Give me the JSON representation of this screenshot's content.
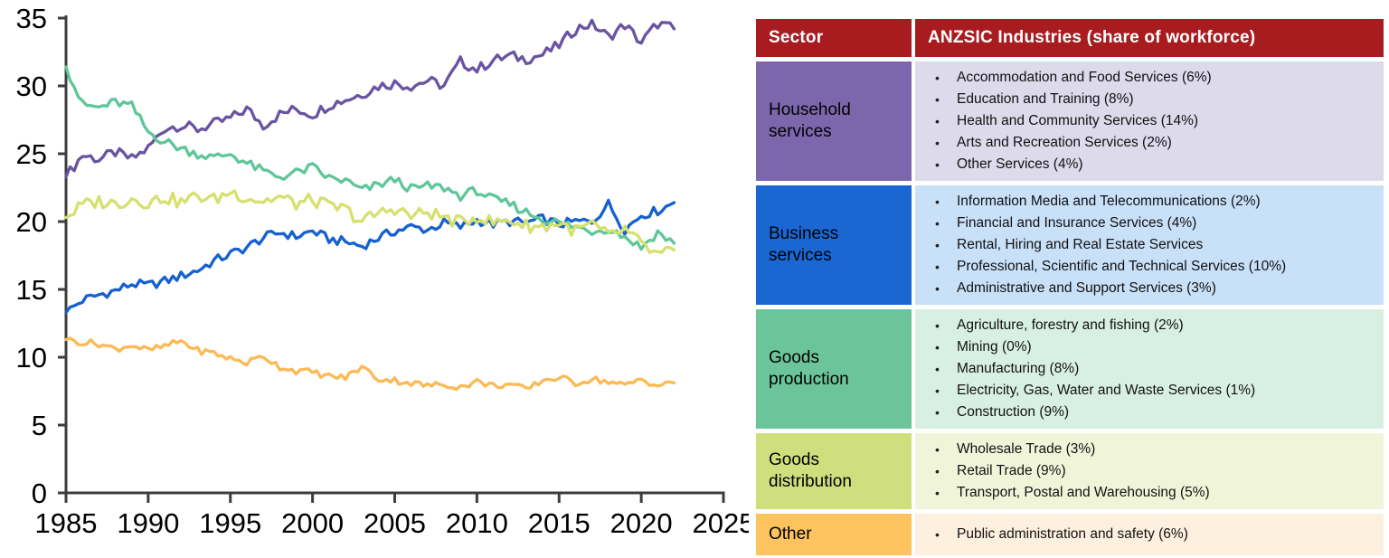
{
  "chart_data": {
    "type": "line",
    "title": "",
    "xlabel": "",
    "ylabel": "",
    "xlim": [
      1985,
      2025
    ],
    "ylim": [
      0,
      35
    ],
    "x_ticks": [
      1985,
      1990,
      1995,
      2000,
      2005,
      2010,
      2015,
      2020,
      2025
    ],
    "y_ticks": [
      0,
      5,
      10,
      15,
      20,
      25,
      30,
      35
    ],
    "grid": false,
    "legend_position": "none",
    "x_start_year": 1985,
    "x_end_year": 2022,
    "x_step_years": 1,
    "unit": "share of workforce (%)",
    "series": [
      {
        "name": "Household services",
        "color": "#6a53a1",
        "values": [
          23.3,
          24.9,
          24.6,
          25.1,
          24.6,
          25.4,
          26.9,
          27.1,
          26.8,
          27.2,
          27.6,
          28.3,
          27.1,
          27.9,
          28.3,
          27.9,
          28.6,
          29.0,
          29.4,
          30.0,
          30.2,
          30.0,
          30.4,
          30.0,
          31.8,
          31.2,
          31.9,
          32.2,
          32.0,
          32.3,
          33.0,
          34.2,
          34.6,
          33.6,
          34.5,
          33.2,
          34.6,
          34.2
        ]
      },
      {
        "name": "Business services",
        "color": "#1661cf",
        "values": [
          13.3,
          14.2,
          14.6,
          14.9,
          15.4,
          15.3,
          15.6,
          16.0,
          16.4,
          17.1,
          17.6,
          18.1,
          18.8,
          19.2,
          18.9,
          19.3,
          18.7,
          18.5,
          18.2,
          18.8,
          19.3,
          19.6,
          19.4,
          19.9,
          19.6,
          20.1,
          19.8,
          20.0,
          19.9,
          20.2,
          19.8,
          20.0,
          20.0,
          21.3,
          19.4,
          20.5,
          20.8,
          21.4
        ]
      },
      {
        "name": "Goods production",
        "color": "#5fc699",
        "values": [
          31.4,
          28.6,
          28.4,
          28.8,
          28.5,
          26.6,
          25.9,
          25.4,
          25.0,
          24.7,
          25.0,
          24.3,
          23.7,
          23.3,
          23.6,
          24.0,
          23.2,
          23.0,
          22.3,
          22.7,
          23.1,
          22.4,
          22.6,
          22.5,
          21.9,
          22.3,
          21.6,
          21.3,
          20.7,
          20.2,
          19.9,
          19.6,
          19.3,
          19.5,
          18.9,
          18.1,
          19.2,
          18.4
        ]
      },
      {
        "name": "Goods distribution",
        "color": "#d6e06e",
        "values": [
          20.3,
          21.2,
          21.5,
          21.3,
          21.7,
          21.4,
          21.8,
          21.4,
          21.9,
          21.6,
          22.2,
          21.8,
          21.5,
          21.8,
          21.3,
          21.6,
          21.1,
          20.9,
          20.0,
          20.6,
          21.0,
          20.4,
          20.7,
          20.3,
          19.9,
          20.4,
          19.9,
          20.1,
          19.7,
          19.6,
          19.9,
          19.3,
          19.8,
          18.9,
          19.4,
          18.3,
          17.5,
          17.9
        ]
      },
      {
        "name": "Other",
        "color": "#fbba55",
        "values": [
          11.3,
          11.1,
          11.0,
          10.6,
          10.9,
          10.5,
          10.8,
          11.2,
          10.5,
          10.3,
          9.9,
          9.6,
          10.1,
          9.3,
          9.0,
          8.9,
          8.6,
          8.5,
          9.3,
          8.4,
          8.3,
          8.1,
          7.9,
          8.0,
          7.8,
          8.2,
          7.9,
          8.0,
          7.6,
          8.3,
          8.5,
          8.1,
          8.4,
          8.2,
          7.9,
          8.4,
          7.9,
          8.1
        ]
      }
    ]
  },
  "table": {
    "header_bg": "#a81c20",
    "headers": {
      "sector": "Sector",
      "industries": "ANZSIC Industries (share of workforce)"
    },
    "rows": [
      {
        "sector": "Household services",
        "sector_bg": "#7c67ad",
        "list_bg": "#dddaeb",
        "items": [
          "Accommodation and Food Services (6%)",
          "Education and Training (8%)",
          "Health and Community Services (14%)",
          "Arts and Recreation Services (2%)",
          "Other Services (4%)"
        ]
      },
      {
        "sector": "Business services",
        "sector_bg": "#1a67d2",
        "list_bg": "#c9e0f9",
        "items": [
          "Information Media and Telecommunications (2%)",
          "Financial and Insurance Services (4%)",
          "Rental, Hiring and Real Estate Services",
          "Professional, Scientific and Technical Services (10%)",
          "Administrative and Support Services (3%)"
        ]
      },
      {
        "sector": "Goods production",
        "sector_bg": "#6cc59a",
        "list_bg": "#d8f0e4",
        "items": [
          "Agriculture, forestry and fishing (2%)",
          "Mining (0%)",
          "Manufacturing (8%)",
          "Electricity, Gas, Water and Waste Services (1%)",
          "Construction (9%)"
        ]
      },
      {
        "sector": "Goods distribution",
        "sector_bg": "#cfdf7d",
        "list_bg": "#f0f5da",
        "items": [
          "Wholesale Trade (3%)",
          "Retail Trade (9%)",
          "Transport, Postal and Warehousing (5%)"
        ]
      },
      {
        "sector": "Other",
        "sector_bg": "#fcc35f",
        "list_bg": "#fdf0de",
        "items": [
          "Public administration and safety (6%)"
        ]
      }
    ]
  }
}
